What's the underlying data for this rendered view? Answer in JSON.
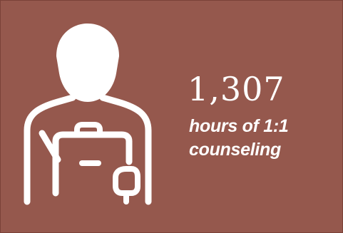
{
  "stat": {
    "value": "1,307",
    "caption_line1": "hours of 1:1",
    "caption_line2": "counseling"
  },
  "icon": {
    "name": "counselor-with-clipboard-icon"
  },
  "colors": {
    "background": "#95584d",
    "foreground": "#ffffff"
  }
}
